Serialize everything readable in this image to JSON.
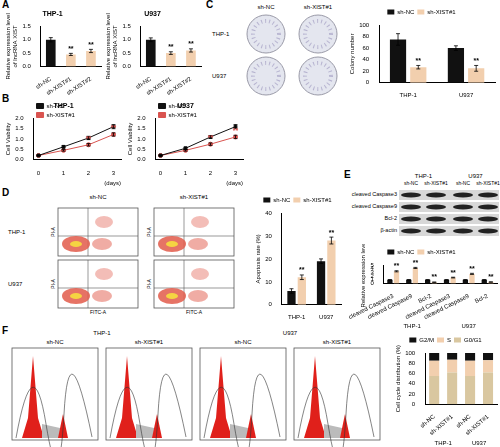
{
  "panels": [
    "A",
    "B",
    "C",
    "D",
    "E",
    "F"
  ],
  "chart_data": [
    {
      "type": "bar",
      "title": "THP-1",
      "y_label": [
        "Relative expression level",
        "of lncRNA XIST"
      ],
      "categories": [
        "sh-NC",
        "sh-XIST#1",
        "sh-XIST#2"
      ],
      "values": [
        1.0,
        0.45,
        0.58
      ],
      "errors": [
        0.08,
        0.04,
        0.06
      ],
      "annotations": [
        null,
        "**",
        "**"
      ],
      "colors": [
        "#111111",
        "#f2cfae",
        "#f2cfae"
      ],
      "ylim": [
        0,
        1.5
      ],
      "yticks": [
        {
          "value": 0,
          "label": "0.0"
        },
        0.5,
        {
          "value": 1,
          "label": "1.0"
        },
        1.5
      ],
      "grid": false
    },
    {
      "type": "bar",
      "title": "U937",
      "y_label": [
        "Relative expression level",
        "of lncRNA XIST"
      ],
      "categories": [
        "sh-NC",
        "sh-XIST#1",
        "sh-XIST#2"
      ],
      "values": [
        1.0,
        0.5,
        0.6
      ],
      "errors": [
        0.07,
        0.05,
        0.06
      ],
      "annotations": [
        null,
        "**",
        "**"
      ],
      "colors": [
        "#111111",
        "#f2cfae",
        "#f2cfae"
      ],
      "ylim": [
        0,
        1.5
      ],
      "yticks": [
        {
          "value": 0,
          "label": "0.0"
        },
        0.5,
        {
          "value": 1,
          "label": "1.0"
        },
        1.5
      ],
      "grid": false
    },
    {
      "type": "line",
      "title": "THP-1",
      "y_label": "Cell Viability",
      "x_label": "(days)",
      "x": [
        0,
        1,
        2,
        3
      ],
      "xlim": [
        -0.2,
        3.3
      ],
      "xticks": [
        0,
        1,
        2,
        3
      ],
      "series": [
        {
          "name": "sh-NC",
          "color": "#111111",
          "marker": "square",
          "values": [
            0.2,
            0.62,
            1.05,
            1.6
          ],
          "errors": [
            0.02,
            0.05,
            0.08,
            0.1
          ]
        },
        {
          "name": "sh-XIST#1",
          "color": "#d9534f",
          "marker": "circle",
          "values": [
            0.2,
            0.45,
            0.72,
            1.22
          ],
          "errors": [
            0.02,
            0.04,
            0.06,
            0.08
          ],
          "annotations": [
            null,
            null,
            "**",
            "**"
          ]
        }
      ],
      "ylim": [
        0,
        2
      ],
      "yticks": [
        {
          "value": 0,
          "label": "0.0"
        },
        0.5,
        {
          "value": 1,
          "label": "1.0"
        },
        1.5,
        {
          "value": 2,
          "label": "2.0"
        }
      ],
      "legend": "upper left",
      "grid": false
    },
    {
      "type": "line",
      "title": "U937",
      "y_label": "Cell Viability",
      "x_label": "(days)",
      "x": [
        0,
        1,
        2,
        3
      ],
      "xlim": [
        -0.2,
        3.3
      ],
      "xticks": [
        0,
        1,
        2,
        3
      ],
      "series": [
        {
          "name": "sh-NC",
          "color": "#111111",
          "marker": "square",
          "values": [
            0.2,
            0.55,
            1.1,
            1.6
          ],
          "errors": [
            0.02,
            0.05,
            0.07,
            0.1
          ]
        },
        {
          "name": "sh-XIST#1",
          "color": "#d9534f",
          "marker": "circle",
          "values": [
            0.2,
            0.45,
            0.75,
            1.1
          ],
          "errors": [
            0.02,
            0.04,
            0.06,
            0.08
          ],
          "annotations": [
            null,
            null,
            "**",
            "**"
          ]
        }
      ],
      "ylim": [
        0,
        2
      ],
      "yticks": [
        {
          "value": 0,
          "label": "0.0"
        },
        0.5,
        {
          "value": 1,
          "label": "1.0"
        },
        1.5,
        {
          "value": 2,
          "label": "2.0"
        }
      ],
      "legend": "upper left",
      "grid": false
    },
    {
      "type": "bar",
      "y_label": "Colony number",
      "categories": [
        "THP-1",
        "U937"
      ],
      "series": [
        {
          "name": "sh-NC",
          "color": "#111111",
          "values": [
            75,
            60
          ],
          "errors": [
            10,
            4
          ]
        },
        {
          "name": "sh-XIST#1",
          "color": "#f2cfae",
          "values": [
            27,
            25
          ],
          "errors": [
            3,
            5
          ],
          "annotations": [
            "**",
            "**"
          ]
        }
      ],
      "ylim": [
        0,
        100
      ],
      "yticks": [
        0,
        20,
        40,
        60,
        80,
        100
      ],
      "legend": "top",
      "grid": false
    },
    {
      "type": "bar",
      "y_label": "Apoptosis rate (%)",
      "categories": [
        "THP-1",
        "U937"
      ],
      "series": [
        {
          "name": "sh-NC",
          "color": "#111111",
          "values": [
            6,
            19
          ],
          "errors": [
            1,
            1
          ]
        },
        {
          "name": "sh-XIST#1",
          "color": "#f2cfae",
          "values": [
            12,
            28
          ],
          "errors": [
            1,
            1.5
          ],
          "annotations": [
            "**",
            "**"
          ]
        }
      ],
      "ylim": [
        0,
        40
      ],
      "yticks": [
        0,
        10,
        20,
        30,
        40
      ],
      "legend": "top",
      "grid": false
    },
    {
      "type": "bar",
      "y_label": "Relative expression level",
      "categories": [
        "cleaved Caspase3",
        "cleaved Caspase9",
        "Bcl-2",
        "cleaved Caspase3",
        "cleaved Caspase9",
        "Bcl-2"
      ],
      "group_labels": [
        "THP-1",
        "U937"
      ],
      "series": [
        {
          "name": "sh-NC",
          "color": "#111111",
          "values": [
            1,
            1,
            1,
            1,
            1,
            1
          ],
          "errors": [
            0.05,
            0.05,
            0.05,
            0.05,
            0.05,
            0.05
          ]
        },
        {
          "name": "sh-XIST#1",
          "color": "#f2cfae",
          "values": [
            3.3,
            4.2,
            0.35,
            1.6,
            2.6,
            0.4
          ],
          "errors": [
            0.15,
            0.15,
            0.05,
            0.1,
            0.15,
            0.05
          ],
          "annotations": [
            "**",
            "**",
            "**",
            "**",
            "**",
            "**"
          ]
        }
      ],
      "ylim": [
        0,
        5
      ],
      "yticks": [
        0,
        1,
        2,
        3,
        4,
        5
      ],
      "legend": "top",
      "grid": false
    },
    {
      "type": "bar",
      "stacked": true,
      "y_label": "Cell cycle distribution (%)",
      "categories": [
        "sh-NC",
        "sh-XIST#1",
        "sh-NC",
        "sh-XIST#1"
      ],
      "group_labels": [
        "THP-1",
        "U937"
      ],
      "series": [
        {
          "name": "G2/M",
          "color": "#111111",
          "values": [
            15,
            13,
            15,
            14
          ]
        },
        {
          "name": "S",
          "color": "#f2cfae",
          "values": [
            30,
            25,
            30,
            24
          ]
        },
        {
          "name": "G0/G1",
          "color": "#d9c7a0",
          "values": [
            55,
            62,
            55,
            62
          ]
        }
      ],
      "ylim": [
        0,
        100
      ],
      "yticks": [
        0,
        20,
        40,
        60,
        80,
        100
      ],
      "legend": "top",
      "grid": false
    }
  ],
  "images": {
    "C": {
      "columns": [
        "sh-NC",
        "sh-XIST#1"
      ],
      "rows": [
        "THP-1",
        "U937"
      ]
    },
    "D": {
      "columns": [
        "sh-NC",
        "sh-XIST#1"
      ],
      "rows": [
        "THP-1",
        "U937"
      ],
      "x_label": "FITC-A",
      "y_label": "PI-A"
    },
    "E": {
      "groups": [
        "THP-1",
        "U937"
      ],
      "columns": [
        "sh-NC",
        "sh-XIST#1"
      ],
      "rows": [
        "cleaved Caspase3",
        "cleaved Caspase9",
        "Bcl-2",
        "β-actin"
      ]
    },
    "F": {
      "groups": [
        "THP-1",
        "U937"
      ],
      "columns": [
        "sh-NC",
        "sh-XIST#1"
      ]
    }
  }
}
